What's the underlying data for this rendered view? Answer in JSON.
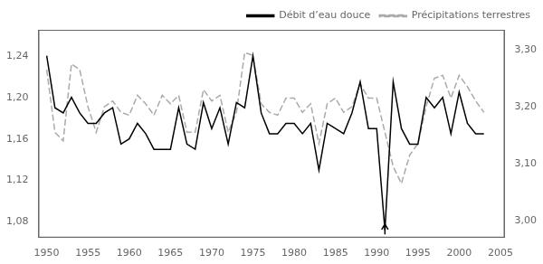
{
  "chart_data": {
    "type": "line",
    "x": [
      1950,
      1951,
      1952,
      1953,
      1954,
      1955,
      1956,
      1957,
      1958,
      1959,
      1960,
      1961,
      1962,
      1963,
      1964,
      1965,
      1966,
      1967,
      1968,
      1969,
      1970,
      1971,
      1972,
      1973,
      1974,
      1975,
      1976,
      1977,
      1978,
      1979,
      1980,
      1981,
      1982,
      1983,
      1984,
      1985,
      1986,
      1987,
      1988,
      1989,
      1990,
      1991,
      1992,
      1993,
      1994,
      1995,
      1996,
      1997,
      1998,
      1999,
      2000,
      2001,
      2002,
      2003
    ],
    "series": [
      {
        "name": "Débit d’eau douce",
        "color": "#000000",
        "line_style": "solid",
        "values": [
          1.24,
          1.19,
          1.185,
          1.2,
          1.185,
          1.175,
          1.175,
          1.185,
          1.19,
          1.155,
          1.16,
          1.175,
          1.165,
          1.15,
          1.15,
          1.15,
          1.19,
          1.155,
          1.15,
          1.195,
          1.17,
          1.19,
          1.155,
          1.195,
          1.19,
          1.24,
          1.185,
          1.165,
          1.165,
          1.175,
          1.175,
          1.165,
          1.175,
          1.13,
          1.175,
          1.17,
          1.165,
          1.185,
          1.215,
          1.17,
          1.17,
          1.072,
          1.215,
          1.17,
          1.155,
          1.155,
          1.2,
          1.19,
          1.2,
          1.165,
          1.205,
          1.175,
          1.165,
          1.165
        ]
      },
      {
        "name": "Précipitations terrestres",
        "color": "#aaaaaa",
        "line_style": "dashed",
        "axis": "y2",
        "values": [
          3.265,
          3.155,
          3.14,
          3.275,
          3.265,
          3.2,
          3.155,
          3.2,
          3.21,
          3.19,
          3.185,
          3.22,
          3.205,
          3.185,
          3.22,
          3.205,
          3.22,
          3.155,
          3.155,
          3.23,
          3.21,
          3.22,
          3.155,
          3.19,
          3.295,
          3.29,
          3.205,
          3.19,
          3.185,
          3.215,
          3.215,
          3.19,
          3.205,
          3.135,
          3.205,
          3.215,
          3.19,
          3.2,
          3.24,
          3.215,
          3.215,
          3.155,
          3.095,
          3.065,
          3.115,
          3.135,
          3.2,
          3.25,
          3.255,
          3.215,
          3.255,
          3.235,
          3.21,
          3.19
        ]
      }
    ],
    "xlim": [
      1949.0,
      2005.5
    ],
    "xticks": [
      1950,
      1955,
      1960,
      1965,
      1970,
      1975,
      1980,
      1985,
      1990,
      1995,
      2000,
      2005
    ],
    "ylim": [
      1.065,
      1.265
    ],
    "yticks": [
      {
        "value": 1.08,
        "label": "1,08"
      },
      {
        "value": 1.12,
        "label": "1,12"
      },
      {
        "value": 1.16,
        "label": "1,16"
      },
      {
        "value": 1.2,
        "label": "1,20"
      },
      {
        "value": 1.24,
        "label": "1,24"
      }
    ],
    "y2lim": [
      2.97,
      3.335
    ],
    "y2ticks": [
      {
        "value": 3.0,
        "label": "3,00"
      },
      {
        "value": 3.1,
        "label": "3,10"
      },
      {
        "value": 3.2,
        "label": "3,20"
      },
      {
        "value": 3.3,
        "label": "3,30"
      }
    ],
    "annotations": [
      {
        "x": 1991,
        "y_from": 1.068,
        "y_to": 1.078
      }
    ],
    "legend": "upper right",
    "grid": false
  }
}
